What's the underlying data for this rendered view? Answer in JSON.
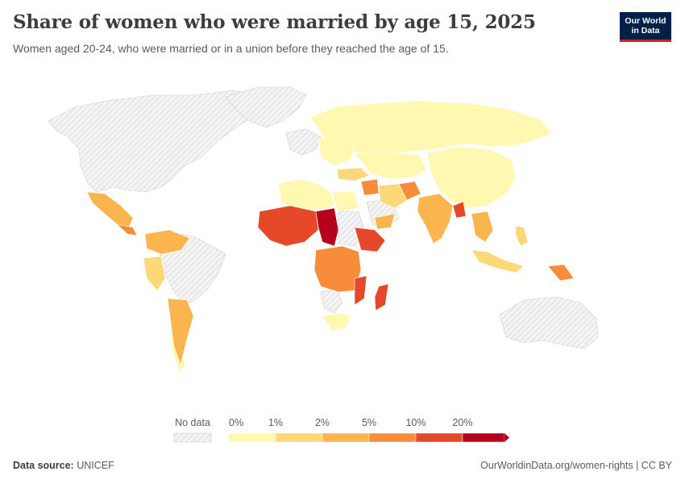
{
  "title": "Share of women who were married by age 15, 2025",
  "subtitle": "Women aged 20-24, who were married or in a union before they reached the age of 15.",
  "logo": {
    "line1": "Our World",
    "line2": "in Data"
  },
  "legend": {
    "no_data_label": "No data",
    "bins": [
      {
        "label": "0%",
        "color": "#fef8b0"
      },
      {
        "label": "1%",
        "color": "#fdd878"
      },
      {
        "label": "2%",
        "color": "#fbb54e"
      },
      {
        "label": "5%",
        "color": "#f78c3a"
      },
      {
        "label": "10%",
        "color": "#e6482a"
      },
      {
        "label": "20%",
        "color": "#b6001e"
      }
    ]
  },
  "footer": {
    "source_label": "Data source:",
    "source": "UNICEF",
    "url": "OurWorldinData.org/women-rights | CC BY"
  },
  "colors": {
    "bin0": "#fef8b0",
    "bin1": "#fdd878",
    "bin2": "#fbb54e",
    "bin3": "#f78c3a",
    "bin4": "#e6482a",
    "bin5": "#b6001e",
    "nodata": "#e8e8e8"
  }
}
